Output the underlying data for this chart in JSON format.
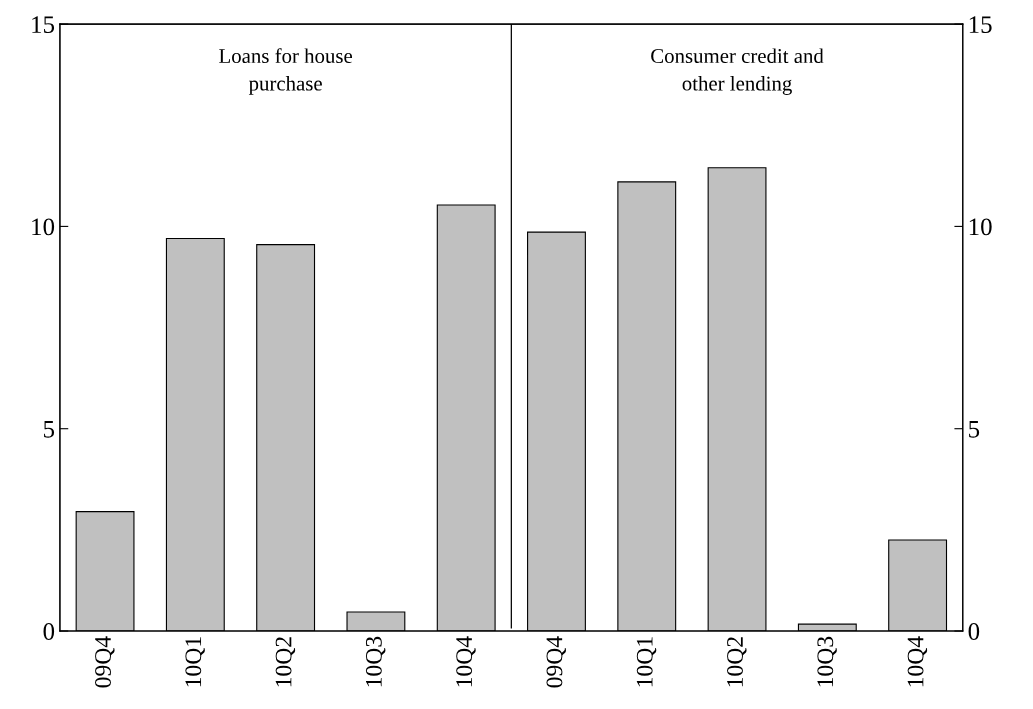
{
  "chart_data": {
    "type": "bar",
    "categories": [
      "09Q4",
      "10Q1",
      "10Q2",
      "10Q3",
      "10Q4",
      "09Q4",
      "10Q1",
      "10Q2",
      "10Q3",
      "10Q4"
    ],
    "values": [
      2.95,
      9.7,
      9.55,
      0.47,
      10.53,
      9.86,
      11.1,
      11.45,
      0.17,
      2.25
    ],
    "color": "#c0c0c0",
    "ylim": [
      0,
      15
    ],
    "yticks": [
      0,
      5,
      10,
      15
    ],
    "y2lim": [
      0,
      15
    ],
    "y2ticks": [
      0,
      5,
      10,
      15
    ],
    "annotations": [
      "Loans for house\npurchase",
      "Consumer credit and\nother lending"
    ],
    "grid": false
  }
}
